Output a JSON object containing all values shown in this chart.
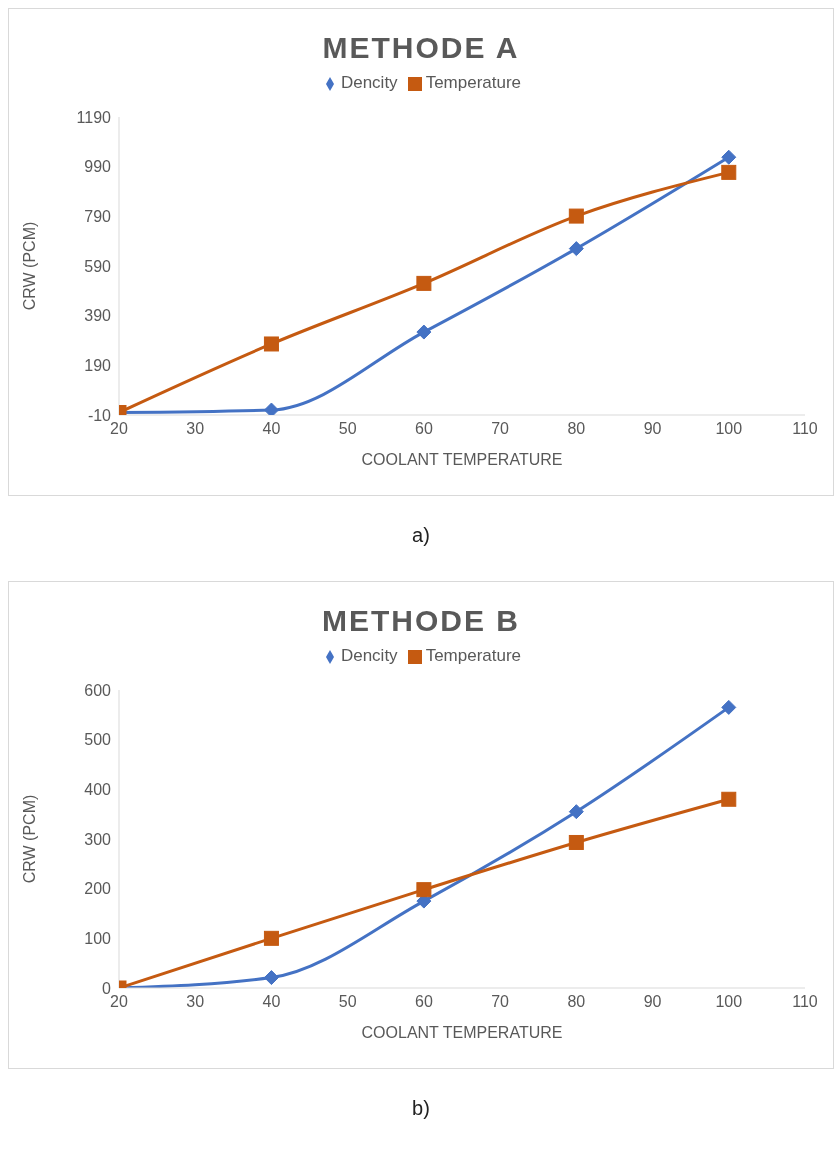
{
  "chart_data": [
    {
      "type": "line",
      "title": "METHODE A",
      "xlabel": "COOLANT TEMPERATURE",
      "ylabel": "CRW (PCM)",
      "x": [
        20,
        40,
        60,
        80,
        100
      ],
      "series": [
        {
          "name": "Dencity",
          "color": "#4472c4",
          "marker": "diamond",
          "values": [
            0,
            10,
            324,
            660,
            1028
          ]
        },
        {
          "name": "Temperature",
          "color": "#c55a11",
          "marker": "square",
          "values": [
            0,
            276,
            520,
            791,
            967
          ]
        }
      ],
      "xlim": [
        20,
        110
      ],
      "xticks": [
        20,
        30,
        40,
        50,
        60,
        70,
        80,
        90,
        100,
        110
      ],
      "ylim": [
        -10,
        1190
      ],
      "yticks": [
        -10,
        190,
        390,
        590,
        790,
        990,
        1190
      ],
      "grid": false,
      "legend": "top",
      "annotations": [
        "a)"
      ]
    },
    {
      "type": "line",
      "title": "METHODE B",
      "xlabel": "COOLANT TEMPERATURE",
      "ylabel": "CRW (PCM)",
      "x": [
        20,
        40,
        60,
        80,
        100
      ],
      "series": [
        {
          "name": "Dencity",
          "color": "#4472c4",
          "marker": "diamond",
          "values": [
            0,
            21,
            175,
            355,
            565
          ]
        },
        {
          "name": "Temperature",
          "color": "#c55a11",
          "marker": "square",
          "values": [
            0,
            100,
            198,
            293,
            380
          ]
        }
      ],
      "xlim": [
        20,
        110
      ],
      "xticks": [
        20,
        30,
        40,
        50,
        60,
        70,
        80,
        90,
        100,
        110
      ],
      "ylim": [
        0,
        600
      ],
      "yticks": [
        0,
        100,
        200,
        300,
        400,
        500,
        600
      ],
      "grid": false,
      "legend": "top",
      "annotations": [
        "b)"
      ]
    }
  ]
}
